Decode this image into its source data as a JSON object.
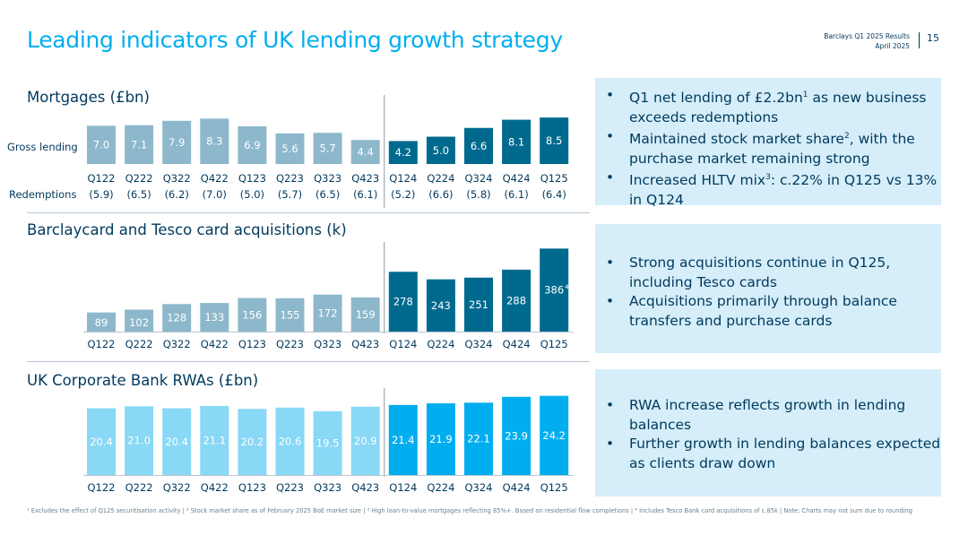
{
  "header": {
    "title": "Leading indicators of UK lending growth strategy",
    "report": "Barclays Q1 2025 Results",
    "date": "April 2025",
    "page": "15"
  },
  "mortgages": {
    "section_title": "Mortgages (£bn)",
    "row_gross": "Gross lending",
    "row_redemptions": "Redemptions",
    "panel": [
      {
        "pre": "Q1 net lending of £2.2bn",
        "sup": "1",
        "post": " as new business exceeds redemptions"
      },
      {
        "pre": "Maintained stock market share",
        "sup": "2",
        "post": ", with the purchase market remaining strong"
      },
      {
        "pre": "Increased HLTV mix",
        "sup": "3",
        "post": ": c.22% in Q125 vs 13% in Q124"
      }
    ]
  },
  "cards": {
    "section_title": "Barclaycard and Tesco card acquisitions (k)",
    "panel": [
      {
        "pre": "Strong acquisitions continue in Q125, including Tesco cards",
        "sup": "",
        "post": ""
      },
      {
        "pre": "Acquisitions primarily through balance transfers and purchase cards",
        "sup": "",
        "post": ""
      }
    ]
  },
  "rwa": {
    "section_title": "UK Corporate Bank RWAs (£bn)",
    "panel": [
      {
        "pre": "RWA increase reflects growth in lending balances",
        "sup": "",
        "post": ""
      },
      {
        "pre": "Further growth in lending balances expected as clients draw down",
        "sup": "",
        "post": ""
      }
    ]
  },
  "colors": {
    "light_blue": "#8DB8CC",
    "navy": "#006A8E",
    "rwa_light": "#88D8F6",
    "rwa_bright": "#00AEEF",
    "text_navy": "#00395D"
  },
  "chart_data": [
    {
      "type": "bar",
      "title": "Mortgages (£bn)",
      "categories": [
        "Q122",
        "Q222",
        "Q322",
        "Q422",
        "Q123",
        "Q223",
        "Q323",
        "Q423",
        "Q124",
        "Q224",
        "Q324",
        "Q424",
        "Q125"
      ],
      "series": [
        {
          "name": "Gross lending",
          "values": [
            7.0,
            7.1,
            7.9,
            8.3,
            6.9,
            5.6,
            5.7,
            4.4,
            4.2,
            5.0,
            6.6,
            8.1,
            8.5
          ],
          "labels": [
            "7.0",
            "7.1",
            "7.9",
            "8.3",
            "6.9",
            "5.6",
            "5.7",
            "4.4",
            "4.2",
            "5.0",
            "6.6",
            "8.1",
            "8.5"
          ]
        },
        {
          "name": "Redemptions",
          "values": [
            -5.9,
            -6.5,
            -6.2,
            -7.0,
            -5.0,
            -5.7,
            -6.5,
            -6.1,
            -5.2,
            -6.6,
            -5.8,
            -6.1,
            -6.4
          ],
          "labels": [
            "(5.9)",
            "(6.5)",
            "(6.2)",
            "(7.0)",
            "(5.0)",
            "(5.7)",
            "(6.5)",
            "(6.1)",
            "(5.2)",
            "(6.6)",
            "(5.8)",
            "(6.1)",
            "(6.4)"
          ]
        }
      ]
    },
    {
      "type": "bar",
      "title": "Barclaycard and Tesco card acquisitions (k)",
      "categories": [
        "Q122",
        "Q222",
        "Q322",
        "Q422",
        "Q123",
        "Q223",
        "Q323",
        "Q423",
        "Q124",
        "Q224",
        "Q324",
        "Q424",
        "Q125"
      ],
      "values": [
        89,
        102,
        128,
        133,
        156,
        155,
        172,
        159,
        278,
        243,
        251,
        288,
        386
      ],
      "labels": [
        "89",
        "102",
        "128",
        "133",
        "156",
        "155",
        "172",
        "159",
        "278",
        "243",
        "251",
        "288",
        "386"
      ],
      "annotations": [
        {
          "category": "Q125",
          "superscript": "4"
        }
      ]
    },
    {
      "type": "bar",
      "title": "UK Corporate Bank RWAs (£bn)",
      "categories": [
        "Q122",
        "Q222",
        "Q322",
        "Q422",
        "Q123",
        "Q223",
        "Q323",
        "Q423",
        "Q124",
        "Q224",
        "Q324",
        "Q424",
        "Q125"
      ],
      "values": [
        20.4,
        21.0,
        20.4,
        21.1,
        20.2,
        20.6,
        19.5,
        20.9,
        21.4,
        21.9,
        22.1,
        23.9,
        24.2
      ],
      "labels": [
        "20.4",
        "21.0",
        "20.4",
        "21.1",
        "20.2",
        "20.6",
        "19.5",
        "20.9",
        "21.4",
        "21.9",
        "22.1",
        "23.9",
        "24.2"
      ]
    }
  ],
  "footnote": "¹ Excludes the effect of Q125 securitisation activity | ² Stock market share as of February 2025 BoE market size | ³ High loan-to-value mortgages reflecting 85%+. Based on residential flow completions | ⁴ Includes Tesco Bank card acquisitions of c.85k | Note: Charts may not sum due to rounding"
}
